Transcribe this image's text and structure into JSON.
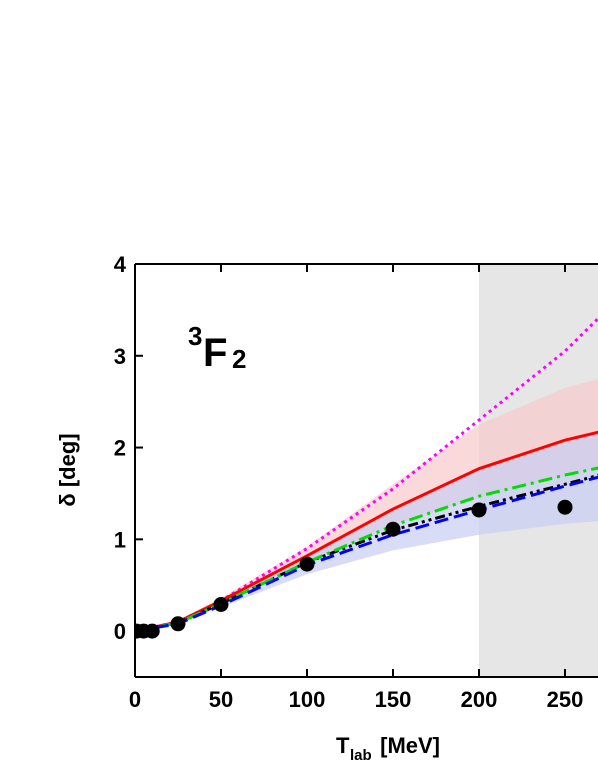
{
  "chart_data": {
    "type": "line",
    "x_label": {
      "main": "T",
      "sub": "lab",
      "tail": " [MeV]"
    },
    "y_label": "δ [deg]",
    "annotation": {
      "sup": "3",
      "main": "F",
      "sub": "2"
    },
    "xlim": [
      0,
      270
    ],
    "ylim": [
      -0.5,
      4
    ],
    "xticks": [
      0,
      50,
      100,
      150,
      200,
      250
    ],
    "yticks": [
      0,
      1,
      2,
      3,
      4
    ],
    "shaded_x": [
      200,
      270
    ],
    "shaded_color": "#e6e6e6",
    "bands": [
      {
        "color": "#f7c9c9",
        "x": [
          0,
          25,
          50,
          100,
          150,
          200,
          250,
          270
        ],
        "lower": [
          0,
          0.08,
          0.3,
          0.75,
          1.15,
          1.45,
          1.7,
          1.78
        ],
        "upper": [
          0,
          0.12,
          0.36,
          0.92,
          1.6,
          2.25,
          2.65,
          2.75
        ]
      },
      {
        "color": "#c9cdf2",
        "x": [
          0,
          25,
          50,
          100,
          150,
          200,
          250,
          270
        ],
        "lower": [
          0,
          0.07,
          0.26,
          0.62,
          0.88,
          1.05,
          1.17,
          1.2
        ],
        "upper": [
          0,
          0.1,
          0.3,
          0.8,
          1.3,
          1.75,
          2.05,
          2.15
        ]
      }
    ],
    "series": [
      {
        "color": "#ff00ff",
        "style": "dot",
        "x": [
          0,
          25,
          50,
          100,
          150,
          200,
          250,
          270
        ],
        "values": [
          0,
          0.1,
          0.33,
          0.9,
          1.55,
          2.3,
          3.05,
          3.42
        ]
      },
      {
        "color": "#ff0000",
        "style": "solid",
        "x": [
          0,
          25,
          50,
          100,
          150,
          200,
          250,
          270
        ],
        "values": [
          0,
          0.1,
          0.33,
          0.82,
          1.33,
          1.77,
          2.08,
          2.17
        ]
      },
      {
        "color": "#000000",
        "style": "dashdotdot",
        "x": [
          0,
          25,
          50,
          100,
          150,
          200,
          250,
          270
        ],
        "values": [
          0,
          0.09,
          0.3,
          0.75,
          1.1,
          1.36,
          1.6,
          1.7
        ]
      },
      {
        "color": "#00dd00",
        "style": "dashdot",
        "x": [
          0,
          25,
          50,
          100,
          150,
          200,
          250,
          270
        ],
        "values": [
          0,
          0.09,
          0.3,
          0.75,
          1.15,
          1.47,
          1.7,
          1.78
        ]
      },
      {
        "color": "#0000ff",
        "style": "dash",
        "x": [
          0,
          25,
          50,
          100,
          150,
          200,
          250,
          270
        ],
        "values": [
          0,
          0.08,
          0.28,
          0.72,
          1.05,
          1.32,
          1.58,
          1.68
        ]
      }
    ],
    "points": {
      "color": "#000000",
      "x": [
        1,
        5,
        10,
        25,
        50,
        100,
        150,
        200,
        250
      ],
      "values": [
        0,
        0,
        0,
        0.08,
        0.29,
        0.73,
        1.11,
        1.32,
        1.35
      ]
    }
  }
}
